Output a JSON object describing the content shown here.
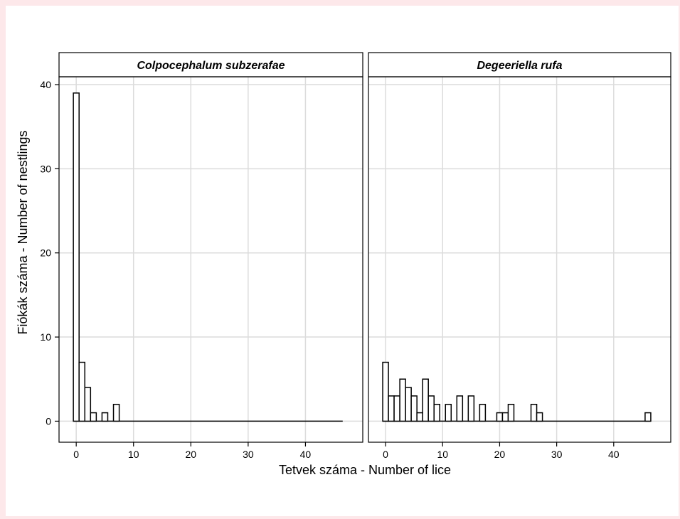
{
  "chart_data": {
    "type": "bar",
    "xlabel": "Tetvek száma - Number of lice",
    "ylabel": "Fiókák száma - Number of nestlings",
    "xlim": [
      -3,
      50
    ],
    "ylim": [
      -2.5,
      40
    ],
    "x_ticks": [
      0,
      10,
      20,
      30,
      40
    ],
    "y_ticks": [
      0,
      10,
      20,
      30,
      40
    ],
    "bin_width": 1,
    "grid": true,
    "panels": [
      {
        "title": "Colpocephalum subzerafae",
        "range": [
          0,
          47
        ],
        "x": [
          0,
          1,
          2,
          3,
          4,
          5,
          6,
          7
        ],
        "values": [
          39,
          7,
          4,
          1,
          0,
          1,
          0,
          2
        ]
      },
      {
        "title": "Degeeriella rufa",
        "range": [
          0,
          47
        ],
        "x": [
          0,
          1,
          2,
          3,
          4,
          5,
          6,
          7,
          8,
          9,
          10,
          11,
          12,
          13,
          14,
          15,
          16,
          17,
          18,
          19,
          20,
          21,
          22,
          23,
          24,
          25,
          26,
          27,
          28,
          29,
          30,
          31,
          32,
          33,
          34,
          35,
          36,
          37,
          38,
          39,
          40,
          41,
          42,
          43,
          44,
          45,
          46
        ],
        "values": [
          7,
          3,
          3,
          5,
          4,
          3,
          1,
          5,
          3,
          2,
          0,
          2,
          0,
          3,
          0,
          3,
          0,
          2,
          0,
          0,
          1,
          1,
          2,
          0,
          0,
          0,
          2,
          1,
          0,
          0,
          0,
          0,
          0,
          0,
          0,
          0,
          0,
          0,
          0,
          0,
          0,
          0,
          0,
          0,
          0,
          0,
          1
        ]
      }
    ]
  }
}
